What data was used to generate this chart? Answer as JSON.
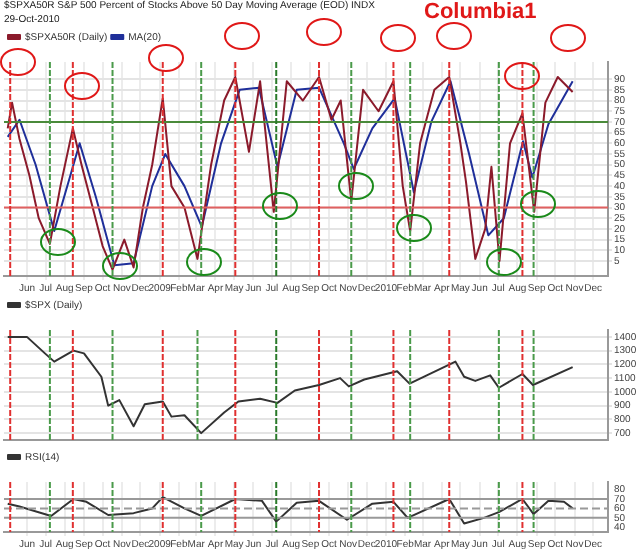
{
  "chart_data": [
    {
      "type": "line",
      "title": "$SPXA50R S&P 500 Percent of Stocks Above 50 Day Moving Average (EOD) INDX",
      "subtitle": "29-Oct-2010",
      "annotations": [
        "Columbia1"
      ],
      "series": [
        {
          "name": "$SPXA50R (Daily)",
          "color": "#8b1a2b",
          "x": [
            "2008-05-01",
            "2008-05-08",
            "2008-05-20",
            "2008-06-05",
            "2008-06-20",
            "2008-07-08",
            "2008-07-25",
            "2008-08-14",
            "2008-08-28",
            "2008-09-15",
            "2008-10-01",
            "2008-10-17",
            "2008-11-05",
            "2008-11-20",
            "2008-12-05",
            "2008-12-20",
            "2009-01-06",
            "2009-01-20",
            "2009-02-10",
            "2009-03-03",
            "2009-03-25",
            "2009-04-15",
            "2009-05-03",
            "2009-05-25",
            "2009-06-12",
            "2009-07-04",
            "2009-07-25",
            "2009-08-20",
            "2009-09-15",
            "2009-10-05",
            "2009-10-20",
            "2009-11-06",
            "2009-11-25",
            "2009-12-20",
            "2010-01-13",
            "2010-01-28",
            "2010-02-09",
            "2010-02-25",
            "2010-03-20",
            "2010-04-13",
            "2010-05-01",
            "2010-05-10",
            "2010-05-25",
            "2010-06-10",
            "2010-06-20",
            "2010-07-03",
            "2010-07-20",
            "2010-08-09",
            "2010-08-28",
            "2010-09-15",
            "2010-10-05",
            "2010-10-29"
          ],
          "values": [
            67,
            79,
            62,
            45,
            25,
            13,
            40,
            67,
            50,
            30,
            12,
            1,
            15,
            2,
            30,
            50,
            81,
            40,
            30,
            6,
            50,
            80,
            91,
            56,
            89,
            28,
            89,
            80,
            91,
            71,
            80,
            33,
            85,
            75,
            89,
            40,
            19,
            60,
            85,
            91,
            60,
            42,
            6,
            20,
            49,
            5,
            60,
            74,
            28,
            79,
            91,
            84
          ]
        },
        {
          "name": "MA(20)",
          "color": "#1f2f9a",
          "x": [
            "2008-05-01",
            "2008-05-20",
            "2008-06-15",
            "2008-07-15",
            "2008-08-10",
            "2008-08-25",
            "2008-09-20",
            "2008-10-20",
            "2008-11-20",
            "2008-12-20",
            "2009-01-10",
            "2009-02-10",
            "2009-03-10",
            "2009-04-10",
            "2009-05-10",
            "2009-06-10",
            "2009-07-10",
            "2009-08-10",
            "2009-09-15",
            "2009-10-25",
            "2009-11-10",
            "2009-12-10",
            "2010-01-15",
            "2010-02-15",
            "2010-03-15",
            "2010-04-15",
            "2010-05-15",
            "2010-06-15",
            "2010-07-10",
            "2010-08-10",
            "2010-08-25",
            "2010-09-20",
            "2010-10-29"
          ],
          "values": [
            63,
            71,
            50,
            19,
            45,
            60,
            35,
            3,
            4,
            40,
            55,
            40,
            21,
            60,
            85,
            86,
            49,
            85,
            86,
            60,
            48,
            67,
            81,
            37,
            70,
            89,
            55,
            17,
            25,
            61,
            44,
            69,
            89
          ]
        }
      ],
      "xlim": [
        "2008-04-25",
        "2010-12-25"
      ],
      "xticks": [
        {
          "value": "2008-06-01",
          "label": "Jun"
        },
        {
          "value": "2008-07-01",
          "label": "Jul"
        },
        {
          "value": "2008-08-01",
          "label": "Aug"
        },
        {
          "value": "2008-09-01",
          "label": "Sep"
        },
        {
          "value": "2008-10-01",
          "label": "Oct"
        },
        {
          "value": "2008-11-01",
          "label": "Nov"
        },
        {
          "value": "2008-12-01",
          "label": "Dec"
        },
        {
          "value": "2009-01-01",
          "label": "2009"
        },
        {
          "value": "2009-02-01",
          "label": "Feb"
        },
        {
          "value": "2009-03-01",
          "label": "Mar"
        },
        {
          "value": "2009-04-01",
          "label": "Apr"
        },
        {
          "value": "2009-05-01",
          "label": "May"
        },
        {
          "value": "2009-06-01",
          "label": "Jun"
        },
        {
          "value": "2009-07-01",
          "label": "Jul"
        },
        {
          "value": "2009-08-01",
          "label": "Aug"
        },
        {
          "value": "2009-09-01",
          "label": "Sep"
        },
        {
          "value": "2009-10-01",
          "label": "Oct"
        },
        {
          "value": "2009-11-01",
          "label": "Nov"
        },
        {
          "value": "2009-12-01",
          "label": "Dec"
        },
        {
          "value": "2010-01-01",
          "label": "2010"
        },
        {
          "value": "2010-02-01",
          "label": "Feb"
        },
        {
          "value": "2010-03-01",
          "label": "Mar"
        },
        {
          "value": "2010-04-01",
          "label": "Apr"
        },
        {
          "value": "2010-05-01",
          "label": "May"
        },
        {
          "value": "2010-06-01",
          "label": "Jun"
        },
        {
          "value": "2010-07-01",
          "label": "Jul"
        },
        {
          "value": "2010-08-01",
          "label": "Aug"
        },
        {
          "value": "2010-09-01",
          "label": "Sep"
        },
        {
          "value": "2010-10-01",
          "label": "Oct"
        },
        {
          "value": "2010-11-01",
          "label": "Nov"
        },
        {
          "value": "2010-12-01",
          "label": "Dec"
        }
      ],
      "ylim": [
        -2,
        98
      ],
      "yticks": [
        5,
        10,
        15,
        20,
        25,
        30,
        35,
        40,
        45,
        50,
        55,
        60,
        65,
        70,
        75,
        80,
        85,
        90
      ],
      "grid": true,
      "legend": "top left",
      "marker": "none",
      "line_style": "solid",
      "ref_lines": [
        {
          "axis": "y",
          "value": 70,
          "color": "#4a8a3a"
        },
        {
          "axis": "y",
          "value": 30,
          "color": "#e06060"
        },
        {
          "axis": "x",
          "value": "2008-05-05",
          "color": "#e03030",
          "line_style": "dotted"
        },
        {
          "axis": "x",
          "value": "2008-08-14",
          "color": "#e03030",
          "line_style": "dotted"
        },
        {
          "axis": "x",
          "value": "2009-01-06",
          "color": "#e03030",
          "line_style": "dotted"
        },
        {
          "axis": "x",
          "value": "2009-05-03",
          "color": "#e03030",
          "line_style": "dotted"
        },
        {
          "axis": "x",
          "value": "2009-09-15",
          "color": "#e03030",
          "line_style": "dotted"
        },
        {
          "axis": "x",
          "value": "2010-01-13",
          "color": "#e03030",
          "line_style": "dotted"
        },
        {
          "axis": "x",
          "value": "2010-04-13",
          "color": "#e03030",
          "line_style": "dotted"
        },
        {
          "axis": "x",
          "value": "2010-08-09",
          "color": "#e03030",
          "line_style": "dotted"
        },
        {
          "axis": "x",
          "value": "2008-07-08",
          "color": "#4a9a4a",
          "line_style": "dotted"
        },
        {
          "axis": "x",
          "value": "2008-10-17",
          "color": "#4a9a4a",
          "line_style": "dotted"
        },
        {
          "axis": "x",
          "value": "2009-03-09",
          "color": "#4a9a4a",
          "line_style": "dotted"
        },
        {
          "axis": "x",
          "value": "2009-07-08",
          "color": "#2a7a2a",
          "line_style": "dotted"
        },
        {
          "axis": "x",
          "value": "2009-11-06",
          "color": "#4a9a4a",
          "line_style": "dotted"
        },
        {
          "axis": "x",
          "value": "2010-02-09",
          "color": "#4a9a4a",
          "line_style": "dotted"
        },
        {
          "axis": "x",
          "value": "2010-07-02",
          "color": "#4a9a4a",
          "line_style": "dotted"
        },
        {
          "axis": "x",
          "value": "2010-08-27",
          "color": "#4a9a4a",
          "line_style": "dotted"
        }
      ]
    },
    {
      "type": "line",
      "series": [
        {
          "name": "$SPX (Daily)",
          "color": "#333333",
          "x": [
            "2008-05-01",
            "2008-06-01",
            "2008-06-30",
            "2008-07-15",
            "2008-08-15",
            "2008-09-01",
            "2008-09-29",
            "2008-10-10",
            "2008-10-28",
            "2008-11-20",
            "2008-12-08",
            "2009-01-06",
            "2009-01-20",
            "2009-02-10",
            "2009-03-09",
            "2009-04-15",
            "2009-05-08",
            "2009-06-12",
            "2009-07-10",
            "2009-08-07",
            "2009-09-15",
            "2009-10-19",
            "2009-11-02",
            "2009-11-27",
            "2010-01-19",
            "2010-02-08",
            "2010-04-23",
            "2010-05-07",
            "2010-05-25",
            "2010-06-18",
            "2010-07-02",
            "2010-08-09",
            "2010-08-26",
            "2010-10-29"
          ],
          "values": [
            1400,
            1400,
            1280,
            1220,
            1300,
            1280,
            1110,
            900,
            940,
            750,
            910,
            930,
            820,
            830,
            700,
            850,
            930,
            950,
            920,
            1010,
            1050,
            1100,
            1040,
            1090,
            1150,
            1060,
            1220,
            1110,
            1080,
            1120,
            1030,
            1130,
            1050,
            1180
          ]
        }
      ],
      "xlim": [
        "2008-04-25",
        "2010-12-25"
      ],
      "ylim": [
        650,
        1450
      ],
      "yticks": [
        700,
        800,
        900,
        1000,
        1100,
        1200,
        1300,
        1400
      ],
      "tick_labels": "y",
      "grid": true,
      "legend": "top left",
      "marker": "none",
      "line_style": "solid",
      "ref_lines": [
        {
          "axis": "x",
          "value": "2008-05-05",
          "color": "#e03030",
          "line_style": "dotted"
        },
        {
          "axis": "x",
          "value": "2008-08-14",
          "color": "#e03030",
          "line_style": "dotted"
        },
        {
          "axis": "x",
          "value": "2009-01-06",
          "color": "#e03030",
          "line_style": "dotted"
        },
        {
          "axis": "x",
          "value": "2009-05-03",
          "color": "#e03030",
          "line_style": "dotted"
        },
        {
          "axis": "x",
          "value": "2009-09-15",
          "color": "#e03030",
          "line_style": "dotted"
        },
        {
          "axis": "x",
          "value": "2010-01-13",
          "color": "#e03030",
          "line_style": "dotted"
        },
        {
          "axis": "x",
          "value": "2010-04-13",
          "color": "#e03030",
          "line_style": "dotted"
        },
        {
          "axis": "x",
          "value": "2010-08-09",
          "color": "#e03030",
          "line_style": "dotted"
        },
        {
          "axis": "x",
          "value": "2008-07-08",
          "color": "#4a9a4a",
          "line_style": "dotted"
        },
        {
          "axis": "x",
          "value": "2008-10-17",
          "color": "#4a9a4a",
          "line_style": "dotted"
        },
        {
          "axis": "x",
          "value": "2009-03-03",
          "color": "#4a9a4a",
          "line_style": "dotted"
        },
        {
          "axis": "x",
          "value": "2009-07-08",
          "color": "#2a7a2a",
          "line_style": "dotted"
        },
        {
          "axis": "x",
          "value": "2009-11-06",
          "color": "#4a9a4a",
          "line_style": "dotted"
        },
        {
          "axis": "x",
          "value": "2010-02-09",
          "color": "#4a9a4a",
          "line_style": "dotted"
        },
        {
          "axis": "x",
          "value": "2010-07-02",
          "color": "#4a9a4a",
          "line_style": "dotted"
        },
        {
          "axis": "x",
          "value": "2010-08-27",
          "color": "#4a9a4a",
          "line_style": "dotted"
        }
      ]
    },
    {
      "type": "line",
      "series": [
        {
          "name": "RSI(14)",
          "color": "#333333",
          "x": [
            "2008-05-01",
            "2008-05-20",
            "2008-07-10",
            "2008-08-15",
            "2008-09-05",
            "2008-10-10",
            "2008-11-20",
            "2008-12-20",
            "2009-01-06",
            "2009-02-10",
            "2009-03-09",
            "2009-05-03",
            "2009-06-15",
            "2009-07-08",
            "2009-08-10",
            "2009-09-15",
            "2009-10-30",
            "2009-12-10",
            "2010-01-13",
            "2010-02-05",
            "2010-04-13",
            "2010-05-07",
            "2010-06-08",
            "2010-07-02",
            "2010-08-09",
            "2010-08-27",
            "2010-09-20",
            "2010-10-15",
            "2010-10-29"
          ],
          "values": [
            65,
            62,
            52,
            70,
            67,
            53,
            55,
            60,
            72,
            60,
            52,
            70,
            68,
            46,
            66,
            68,
            48,
            65,
            67,
            50,
            70,
            44,
            50,
            56,
            70,
            54,
            68,
            67,
            60
          ]
        }
      ],
      "xlim": [
        "2008-04-25",
        "2010-12-25"
      ],
      "xticks": [
        {
          "value": "2008-06-01",
          "label": "Jun"
        },
        {
          "value": "2008-07-01",
          "label": "Jul"
        },
        {
          "value": "2008-08-01",
          "label": "Aug"
        },
        {
          "value": "2008-09-01",
          "label": "Sep"
        },
        {
          "value": "2008-10-01",
          "label": "Oct"
        },
        {
          "value": "2008-11-01",
          "label": "Nov"
        },
        {
          "value": "2008-12-01",
          "label": "Dec"
        },
        {
          "value": "2009-01-01",
          "label": "2009"
        },
        {
          "value": "2009-02-01",
          "label": "Feb"
        },
        {
          "value": "2009-03-01",
          "label": "Mar"
        },
        {
          "value": "2009-04-01",
          "label": "Apr"
        },
        {
          "value": "2009-05-01",
          "label": "May"
        },
        {
          "value": "2009-06-01",
          "label": "Jun"
        },
        {
          "value": "2009-07-01",
          "label": "Jul"
        },
        {
          "value": "2009-08-01",
          "label": "Aug"
        },
        {
          "value": "2009-09-01",
          "label": "Sep"
        },
        {
          "value": "2009-10-01",
          "label": "Oct"
        },
        {
          "value": "2009-11-01",
          "label": "Nov"
        },
        {
          "value": "2009-12-01",
          "label": "Dec"
        },
        {
          "value": "2010-01-01",
          "label": "2010"
        },
        {
          "value": "2010-02-01",
          "label": "Feb"
        },
        {
          "value": "2010-03-01",
          "label": "Mar"
        },
        {
          "value": "2010-04-01",
          "label": "Apr"
        },
        {
          "value": "2010-05-01",
          "label": "May"
        },
        {
          "value": "2010-06-01",
          "label": "Jun"
        },
        {
          "value": "2010-07-01",
          "label": "Jul"
        },
        {
          "value": "2010-08-01",
          "label": "Aug"
        },
        {
          "value": "2010-09-01",
          "label": "Sep"
        },
        {
          "value": "2010-10-01",
          "label": "Oct"
        },
        {
          "value": "2010-11-01",
          "label": "Nov"
        },
        {
          "value": "2010-12-01",
          "label": "Dec"
        }
      ],
      "ylim": [
        35,
        88
      ],
      "yticks": [
        40,
        50,
        60,
        70,
        80
      ],
      "grid": "x",
      "legend": "top left",
      "marker": "none",
      "line_style": "solid",
      "ref_lines": [
        {
          "axis": "y",
          "value": 70,
          "color": "#999999"
        },
        {
          "axis": "y",
          "value": 50,
          "color": "#999999"
        },
        {
          "axis": "y",
          "value": 60,
          "color": "#999999",
          "line_style": "dashed"
        },
        {
          "axis": "x",
          "value": "2008-05-05",
          "color": "#e03030",
          "line_style": "dotted"
        },
        {
          "axis": "x",
          "value": "2008-08-14",
          "color": "#e03030",
          "line_style": "dotted"
        },
        {
          "axis": "x",
          "value": "2009-01-06",
          "color": "#e03030",
          "line_style": "dotted"
        },
        {
          "axis": "x",
          "value": "2009-05-03",
          "color": "#e03030",
          "line_style": "dotted"
        },
        {
          "axis": "x",
          "value": "2009-09-15",
          "color": "#e03030",
          "line_style": "dotted"
        },
        {
          "axis": "x",
          "value": "2010-01-13",
          "color": "#e03030",
          "line_style": "dotted"
        },
        {
          "axis": "x",
          "value": "2010-04-13",
          "color": "#e03030",
          "line_style": "dotted"
        },
        {
          "axis": "x",
          "value": "2010-08-09",
          "color": "#e03030",
          "line_style": "dotted"
        },
        {
          "axis": "x",
          "value": "2008-07-08",
          "color": "#4a9a4a",
          "line_style": "dotted"
        },
        {
          "axis": "x",
          "value": "2008-10-17",
          "color": "#4a9a4a",
          "line_style": "dotted"
        },
        {
          "axis": "x",
          "value": "2009-03-09",
          "color": "#4a9a4a",
          "line_style": "dotted"
        },
        {
          "axis": "x",
          "value": "2009-07-08",
          "color": "#2a7a2a",
          "line_style": "dotted"
        },
        {
          "axis": "x",
          "value": "2009-11-06",
          "color": "#4a9a4a",
          "line_style": "dotted"
        },
        {
          "axis": "x",
          "value": "2010-02-09",
          "color": "#4a9a4a",
          "line_style": "dotted"
        },
        {
          "axis": "x",
          "value": "2010-07-02",
          "color": "#4a9a4a",
          "line_style": "dotted"
        },
        {
          "axis": "x",
          "value": "2010-08-27",
          "color": "#4a9a4a",
          "line_style": "dotted"
        }
      ]
    }
  ]
}
